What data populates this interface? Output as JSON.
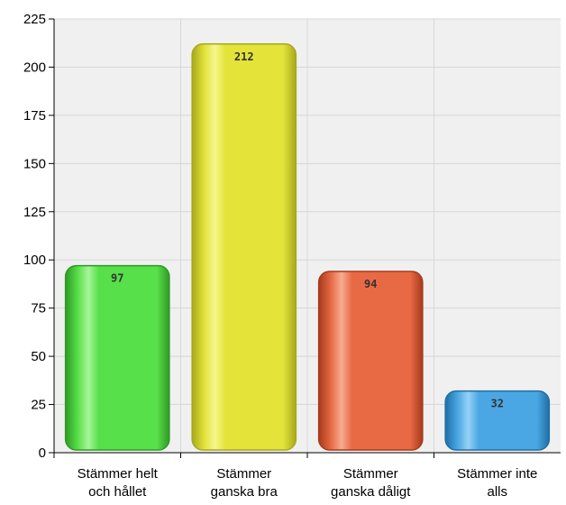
{
  "chart_data": {
    "type": "bar",
    "categories": [
      [
        "Stämmer helt",
        "och hållet"
      ],
      [
        "Stämmer",
        "ganska bra"
      ],
      [
        "Stämmer",
        "ganska dåligt"
      ],
      [
        "Stämmer inte",
        "alls"
      ]
    ],
    "values": [
      97,
      212,
      94,
      32
    ],
    "data_labels": [
      "97",
      "212",
      "94",
      "32"
    ],
    "y_ticks": [
      "0",
      "25",
      "50",
      "75",
      "100",
      "125",
      "150",
      "175",
      "200",
      "225"
    ],
    "ylim": [
      0,
      225
    ],
    "grid": true,
    "legend": "none",
    "colors": [
      {
        "fill": "#58e04a",
        "light": "#a8f59a",
        "dark": "#2f9a24"
      },
      {
        "fill": "#e3e33a",
        "light": "#f6f68c",
        "dark": "#a8a81c"
      },
      {
        "fill": "#e86a45",
        "light": "#f7ad92",
        "dark": "#a83a1c"
      },
      {
        "fill": "#4aa7e3",
        "light": "#98d2f5",
        "dark": "#1f6fa6"
      }
    ],
    "plot_background": "#f0f0f0",
    "grid_color": "#d7d7d7"
  }
}
